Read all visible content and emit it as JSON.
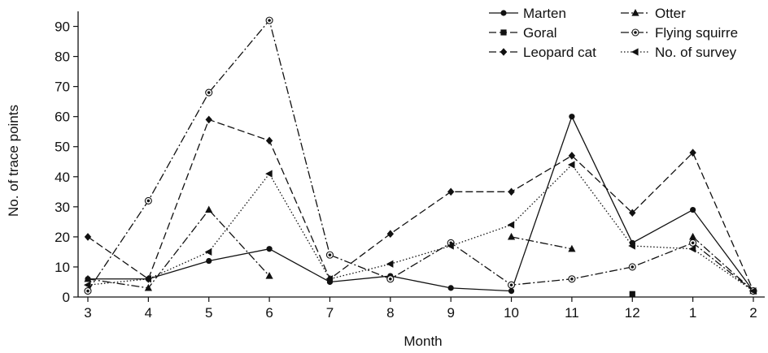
{
  "chart_data": {
    "type": "line",
    "xlabel": "Month",
    "ylabel": "No. of trace points",
    "ylim": [
      0,
      95
    ],
    "yticks": [
      0,
      10,
      20,
      30,
      40,
      50,
      60,
      70,
      80,
      90
    ],
    "categories": [
      "3",
      "4",
      "5",
      "6",
      "7",
      "8",
      "9",
      "10",
      "11",
      "12",
      "1",
      "2"
    ],
    "legend_position": "top-right",
    "grid": false,
    "series": [
      {
        "name": "Marten",
        "line": "solid",
        "marker": "circle",
        "values": [
          6,
          6,
          12,
          16,
          5,
          7,
          3,
          2,
          60,
          18,
          29,
          2
        ]
      },
      {
        "name": "Goral",
        "line": "dashed",
        "marker": "square",
        "values": [
          null,
          null,
          null,
          null,
          null,
          null,
          null,
          null,
          null,
          1,
          null,
          null
        ]
      },
      {
        "name": "Leopard cat",
        "line": "dashed",
        "marker": "diamond",
        "values": [
          20,
          6,
          59,
          52,
          6,
          21,
          35,
          35,
          47,
          28,
          48,
          2
        ]
      },
      {
        "name": "Otter",
        "line": "dashdot",
        "marker": "triangle-up",
        "values": [
          6,
          3,
          29,
          7,
          null,
          null,
          null,
          20,
          16,
          null,
          20,
          2
        ]
      },
      {
        "name": "Flying squirre",
        "line": "dashdot",
        "marker": "bullseye",
        "values": [
          2,
          32,
          68,
          92,
          14,
          6,
          18,
          4,
          6,
          10,
          18,
          2
        ]
      },
      {
        "name": "No. of survey",
        "line": "dotted",
        "marker": "triangle-left",
        "values": [
          4,
          6,
          15,
          41,
          6,
          11,
          17,
          24,
          44,
          17,
          16,
          2
        ]
      }
    ]
  }
}
